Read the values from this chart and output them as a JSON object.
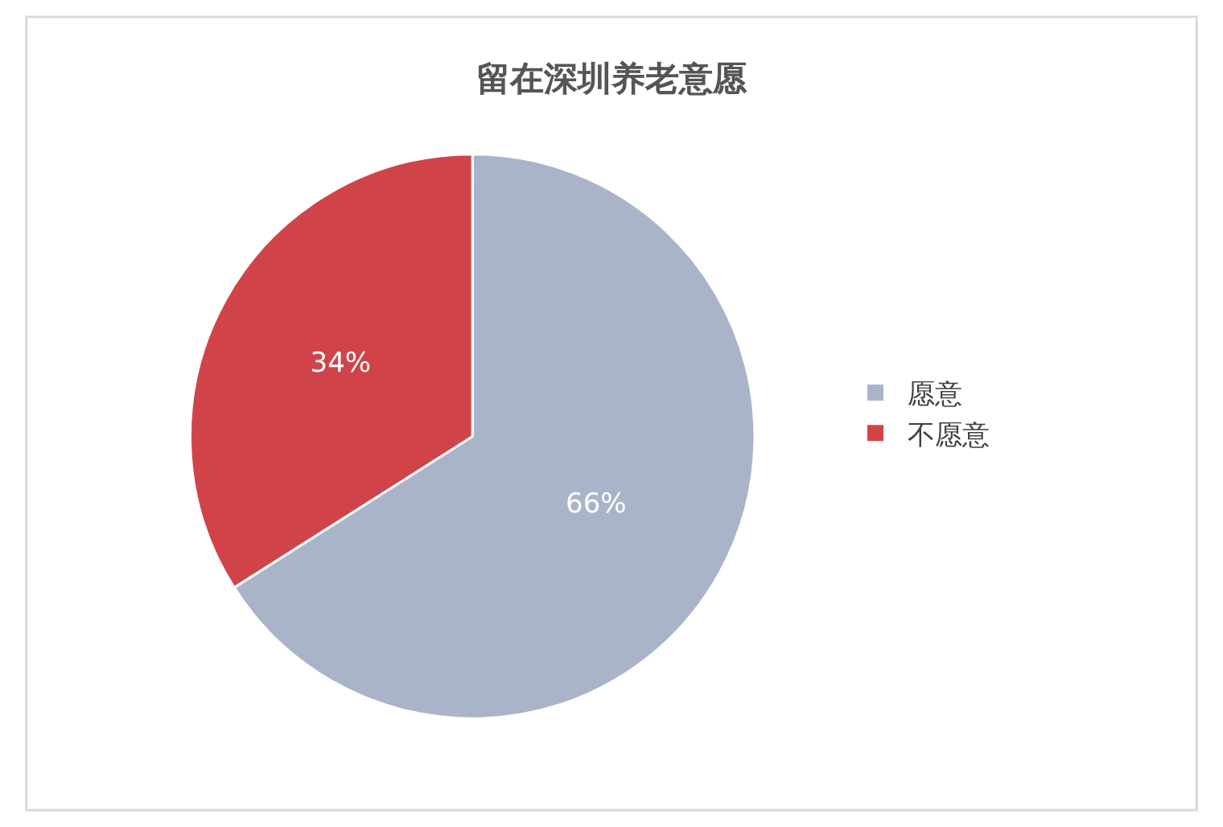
{
  "chart_data": {
    "type": "pie",
    "title": "留在深圳养老意愿",
    "categories": [
      "愿意",
      "不愿意"
    ],
    "values": [
      66,
      34
    ],
    "colors": [
      "#aab4c9",
      "#d04449"
    ],
    "value_labels": [
      "66%",
      "34%"
    ],
    "legend": "right"
  }
}
